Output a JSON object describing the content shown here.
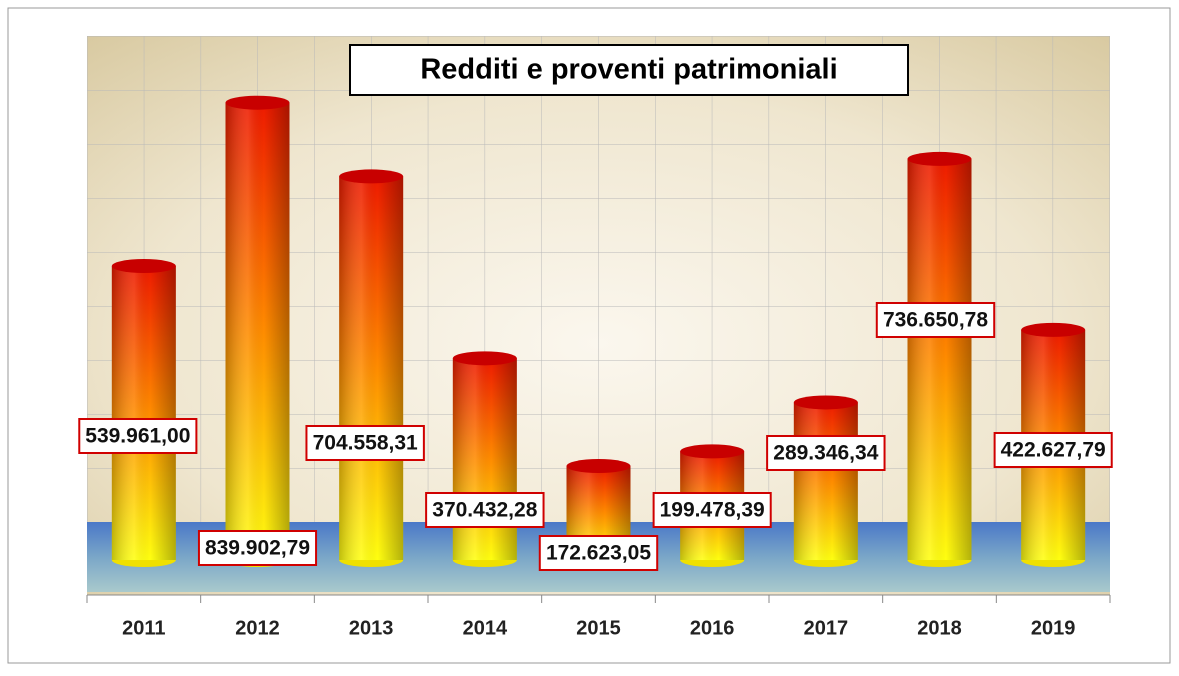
{
  "chart_data": {
    "type": "bar",
    "title": "Redditi e proventi patrimoniali",
    "categories": [
      "2011",
      "2012",
      "2013",
      "2014",
      "2015",
      "2016",
      "2017",
      "2018",
      "2019"
    ],
    "values": [
      539961.0,
      839902.79,
      704558.31,
      370432.28,
      172623.05,
      199478.39,
      289346.34,
      736650.78,
      422627.79
    ],
    "value_labels": [
      "539.961,00",
      "839.902,79",
      "704.558,31",
      "370.432,28",
      "172.623,05",
      "199.478,39",
      "289.346,34",
      "736.650,78",
      "422.627,79"
    ],
    "ylim": [
      0,
      900000
    ],
    "grid": true
  }
}
